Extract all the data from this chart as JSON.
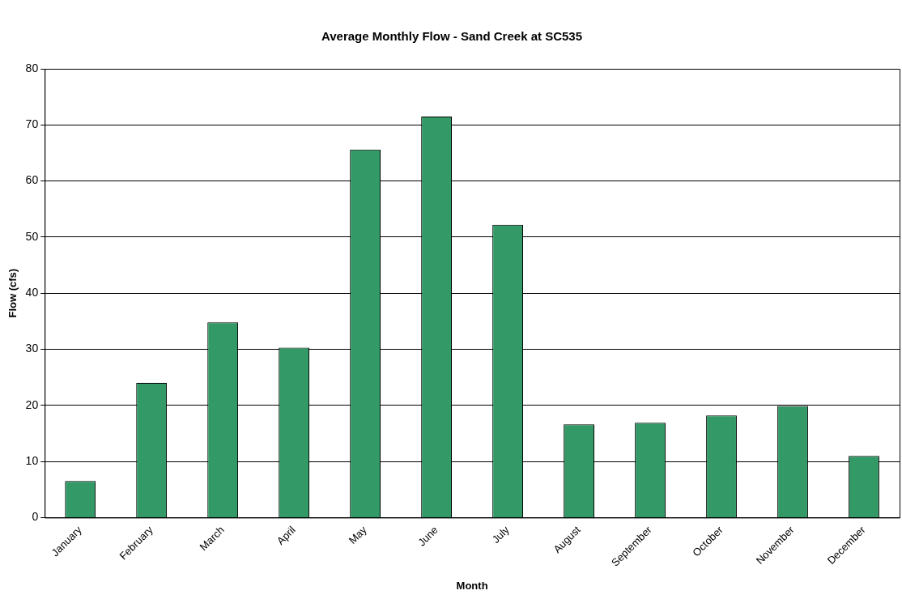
{
  "chart_data": {
    "type": "bar",
    "title": "Average Monthly Flow - Sand Creek at SC535",
    "xlabel": "Month",
    "ylabel": "Flow (cfs)",
    "categories": [
      "January",
      "February",
      "March",
      "April",
      "May",
      "June",
      "July",
      "August",
      "September",
      "October",
      "November",
      "December"
    ],
    "values": [
      6.5,
      24.0,
      34.8,
      30.3,
      65.6,
      71.5,
      52.2,
      16.6,
      16.9,
      18.2,
      19.9,
      11.0
    ],
    "color": "#339966",
    "ylim": [
      0,
      80
    ],
    "yticks": [
      0,
      10,
      20,
      30,
      40,
      50,
      60,
      70,
      80
    ],
    "grid": "y",
    "legend": false
  }
}
